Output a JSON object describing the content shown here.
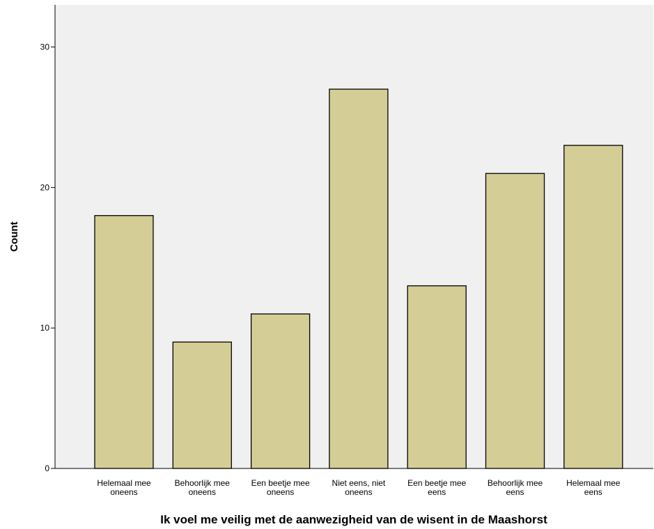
{
  "chart_data": {
    "type": "bar",
    "xlabel": "Ik voel me veilig met de aanwezigheid van de wisent in de Maashorst",
    "ylabel": "Count",
    "ylim": [
      0,
      33
    ],
    "yticks": [
      0,
      10,
      20,
      30
    ],
    "grid": false,
    "colors": {
      "plot_background": "#f0f0f0",
      "bar_fill": "#d4cd96",
      "bar_stroke": "#000000"
    },
    "categories": [
      [
        "Helemaal mee",
        "oneens"
      ],
      [
        "Behoorlijk mee",
        "oneens"
      ],
      [
        "Een beetje mee",
        "oneens"
      ],
      [
        "Niet eens, niet",
        "oneens"
      ],
      [
        "Een beetje mee",
        "eens"
      ],
      [
        "Behoorlijk mee",
        "eens"
      ],
      [
        "Helemaal mee",
        "eens"
      ]
    ],
    "values": [
      18,
      9,
      11,
      27,
      13,
      21,
      23
    ]
  }
}
